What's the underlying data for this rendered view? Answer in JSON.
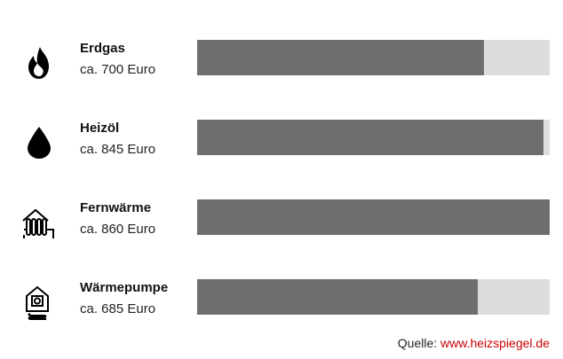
{
  "chart_data": {
    "type": "bar",
    "orientation": "horizontal",
    "categories": [
      "Erdgas",
      "Heizöl",
      "Fernwärme",
      "Wärmepumpe"
    ],
    "value_labels": [
      "ca. 700 Euro",
      "ca. 845 Euro",
      "ca. 860 Euro",
      "ca. 685 Euro"
    ],
    "values": [
      700,
      845,
      860,
      685
    ],
    "xlim": [
      0,
      860
    ],
    "grid": false,
    "legend": "none",
    "colors": {
      "bar": "#6e6e6e",
      "track": "#dcdcdc",
      "source_link": "#cc0000"
    },
    "icons": [
      "flame-icon",
      "oil-drop-icon",
      "radiator-icon",
      "heat-pump-house-icon"
    ]
  },
  "source": {
    "label": "Quelle:",
    "link": "www.heizspiegel.de"
  }
}
